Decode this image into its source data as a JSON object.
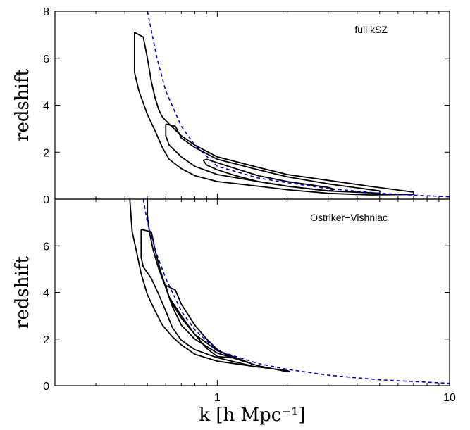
{
  "chart_data": [
    {
      "type": "contour",
      "annotation": "full kSZ",
      "ylabel": "redshift",
      "xscale": "log",
      "xlim": [
        0.2,
        10
      ],
      "ylim": [
        0,
        8
      ],
      "yticks": [
        0,
        2,
        4,
        6,
        8
      ],
      "grid": false,
      "colors": {
        "contour": "#000000",
        "reference_curve": "#0000cc"
      },
      "reference_curve": {
        "style": "dashed",
        "x": [
          0.5,
          0.55,
          0.6,
          0.7,
          0.8,
          1,
          1.5,
          2,
          3,
          5,
          7,
          10
        ],
        "y": [
          8.0,
          6.0,
          4.6,
          3.1,
          2.3,
          1.4,
          0.9,
          0.7,
          0.45,
          0.25,
          0.17,
          0.1
        ]
      },
      "contours": [
        {
          "name": "",
          "x": [
            0.44,
            0.48,
            0.5,
            0.52,
            0.54,
            0.56,
            0.58,
            0.62,
            0.7,
            0.8,
            1.0,
            1.5,
            2.0,
            3.0,
            4.5,
            7.0,
            7.0,
            4.5,
            3.0,
            2.0,
            1.5,
            1.0,
            0.8,
            0.7,
            0.62,
            0.58,
            0.54,
            0.5,
            0.46,
            0.44,
            0.44
          ],
          "y": [
            7.1,
            6.9,
            6.0,
            5.0,
            4.3,
            3.8,
            3.5,
            3.2,
            2.7,
            2.3,
            1.8,
            1.35,
            1.05,
            0.8,
            0.55,
            0.3,
            0.2,
            0.18,
            0.25,
            0.4,
            0.55,
            0.75,
            1.0,
            1.3,
            1.7,
            2.2,
            2.9,
            3.6,
            4.6,
            5.4,
            7.1
          ]
        },
        {
          "name": "",
          "x": [
            0.6,
            0.66,
            0.7,
            0.8,
            1.0,
            1.5,
            2.0,
            3.0,
            5.0,
            5.0,
            3.0,
            2.0,
            1.5,
            1.0,
            0.8,
            0.7,
            0.62,
            0.6,
            0.6
          ],
          "y": [
            3.2,
            3.1,
            2.6,
            2.2,
            1.7,
            1.25,
            0.95,
            0.65,
            0.35,
            0.25,
            0.35,
            0.55,
            0.75,
            1.05,
            1.4,
            1.8,
            2.3,
            2.7,
            3.2
          ]
        },
        {
          "name": "",
          "x": [
            0.87,
            0.9,
            1.0,
            1.2,
            1.5,
            2.0,
            3.0,
            3.2,
            3.0,
            2.0,
            1.5,
            1.2,
            1.0,
            0.9,
            0.87
          ],
          "y": [
            1.65,
            1.7,
            1.55,
            1.3,
            1.0,
            0.75,
            0.5,
            0.42,
            0.35,
            0.55,
            0.75,
            1.0,
            1.25,
            1.45,
            1.65
          ]
        }
      ]
    },
    {
      "type": "contour",
      "annotation": "Ostriker−Vishniac",
      "xlabel": "k [h Mpc⁻¹]",
      "ylabel": "redshift",
      "xscale": "log",
      "xlim": [
        0.2,
        10
      ],
      "ylim": [
        0,
        8
      ],
      "xticks": [
        1,
        10
      ],
      "yticks": [
        0,
        2,
        4,
        6
      ],
      "grid": false,
      "colors": {
        "contour": "#000000",
        "reference_curve": "#0000cc"
      },
      "reference_curve": {
        "style": "dashed",
        "x": [
          0.48,
          0.5,
          0.55,
          0.6,
          0.7,
          0.8,
          1,
          1.5,
          2,
          3,
          5,
          10
        ],
        "y": [
          8.0,
          7.0,
          5.6,
          4.6,
          3.2,
          2.4,
          1.5,
          0.95,
          0.7,
          0.45,
          0.25,
          0.1
        ]
      },
      "contours": [
        {
          "name": "",
          "x": [
            0.42,
            0.43,
            0.45,
            0.47,
            0.5,
            0.54,
            0.58,
            0.64,
            0.7,
            0.8,
            1.0,
            1.5,
            2.0,
            2.05,
            2.0,
            1.5,
            1.0,
            0.8,
            0.7,
            0.64,
            0.6,
            0.56,
            0.53,
            0.51,
            0.5,
            0.5
          ],
          "y": [
            8.0,
            6.6,
            5.7,
            4.8,
            3.9,
            3.2,
            2.6,
            2.1,
            1.75,
            1.35,
            1.05,
            0.8,
            0.65,
            0.6,
            0.6,
            0.85,
            1.4,
            2.0,
            2.6,
            3.4,
            4.2,
            5.0,
            5.8,
            6.6,
            7.3,
            8.0
          ]
        },
        {
          "name": "",
          "x": [
            0.47,
            0.52,
            0.54,
            0.57,
            0.62,
            0.7,
            0.8,
            1.0,
            1.4,
            1.4,
            1.0,
            0.8,
            0.7,
            0.64,
            0.6,
            0.56,
            0.52,
            0.48,
            0.47,
            0.47
          ],
          "y": [
            6.7,
            6.6,
            5.8,
            4.9,
            3.8,
            3.0,
            2.2,
            1.5,
            0.95,
            0.85,
            1.2,
            1.55,
            1.95,
            2.5,
            3.2,
            3.9,
            4.6,
            5.1,
            5.5,
            6.7
          ]
        },
        {
          "name": "",
          "x": [
            0.6,
            0.66,
            0.7,
            0.8,
            0.9,
            1.0,
            1.15,
            1.0,
            0.9,
            0.8,
            0.7,
            0.65,
            0.62,
            0.6
          ],
          "y": [
            4.3,
            4.1,
            3.5,
            2.6,
            2.0,
            1.55,
            1.2,
            1.25,
            1.6,
            2.2,
            2.9,
            3.4,
            3.8,
            4.3
          ]
        }
      ]
    }
  ]
}
